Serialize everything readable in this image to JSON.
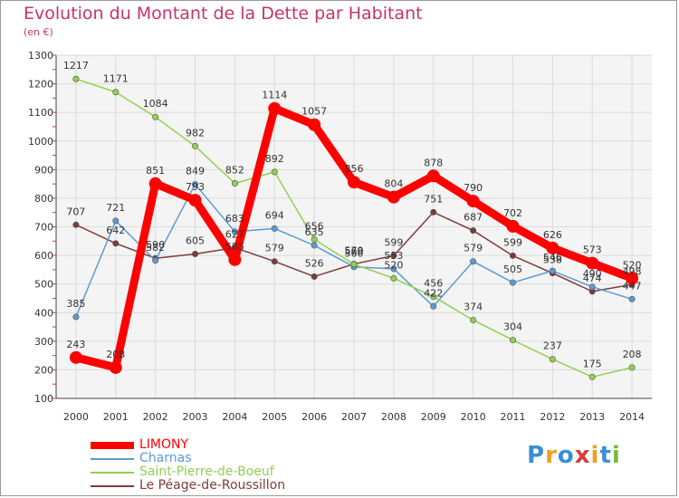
{
  "chart_data": {
    "type": "line",
    "title": "Evolution du Montant de la Dette par Habitant",
    "unit_label": "(en €)",
    "x": [
      "2000",
      "2001",
      "2002",
      "2003",
      "2004",
      "2005",
      "2006",
      "2007",
      "2008",
      "2009",
      "2010",
      "2011",
      "2012",
      "2013",
      "2014"
    ],
    "ylim": [
      100,
      1300
    ],
    "yticks": [
      100,
      200,
      300,
      400,
      500,
      600,
      700,
      800,
      900,
      1000,
      1100,
      1200,
      1300
    ],
    "grid": true,
    "series": [
      {
        "name": "LIMONY",
        "color": "#ff0000",
        "values": [
          243,
          208,
          851,
          793,
          585,
          1114,
          1057,
          856,
          804,
          878,
          790,
          702,
          626,
          573,
          520
        ]
      },
      {
        "name": "Charnas",
        "color": "#5b9bd5",
        "values": [
          385,
          721,
          582,
          849,
          683,
          694,
          635,
          560,
          553,
          422,
          579,
          505,
          546,
          490,
          447
        ]
      },
      {
        "name": "Saint-Pierre-de-Boeuf",
        "color": "#92d050",
        "values": [
          1217,
          1171,
          1084,
          982,
          852,
          892,
          656,
          569,
          520,
          456,
          374,
          304,
          237,
          175,
          208
        ]
      },
      {
        "name": "Le Péage-de-Roussillon",
        "color": "#7f3b3b",
        "values": [
          707,
          642,
          590,
          605,
          627,
          579,
          526,
          570,
          599,
          751,
          687,
          599,
          538,
          474,
          498
        ]
      }
    ],
    "data_labels": {
      "LIMONY": [
        "243",
        "208",
        "851",
        "793",
        "585",
        "1114",
        "1057",
        "856",
        "804",
        "878",
        "790",
        "702",
        "626",
        "573",
        "520"
      ],
      "Charnas": [
        "385",
        "721",
        "582",
        "849",
        "683",
        "694",
        "635",
        "560",
        "553",
        "422",
        "579",
        "505",
        "546",
        "490",
        "447"
      ],
      "Saint-Pierre-de-Boeuf": [
        "1217",
        "1171",
        "1084",
        "982",
        "852",
        "892",
        "656",
        "569",
        "520",
        "456",
        "374",
        "304",
        "237",
        "175",
        "208"
      ],
      "Le Péage-de-Roussillon": [
        "707",
        "642",
        "590",
        "605",
        "627",
        "579",
        "526",
        "570",
        "599",
        "751",
        "687",
        "599",
        "538",
        "474",
        "498"
      ]
    }
  },
  "legend": {
    "items": [
      {
        "label": "LIMONY",
        "color": "#ff0000"
      },
      {
        "label": "Charnas",
        "color": "#5b9bd5"
      },
      {
        "label": "Saint-Pierre-de-Boeuf",
        "color": "#92d050"
      },
      {
        "label": "Le Péage-de-Roussillon",
        "color": "#7f3b3b"
      }
    ]
  },
  "brand": {
    "letters": [
      "P",
      "r",
      "o",
      "x",
      "i",
      "t",
      "i"
    ],
    "colors": [
      "#3a8fd4",
      "#f0a020",
      "#3a8fd4",
      "#d93a3a",
      "#f0a020",
      "#3a8fd4",
      "#7ab83a"
    ]
  }
}
